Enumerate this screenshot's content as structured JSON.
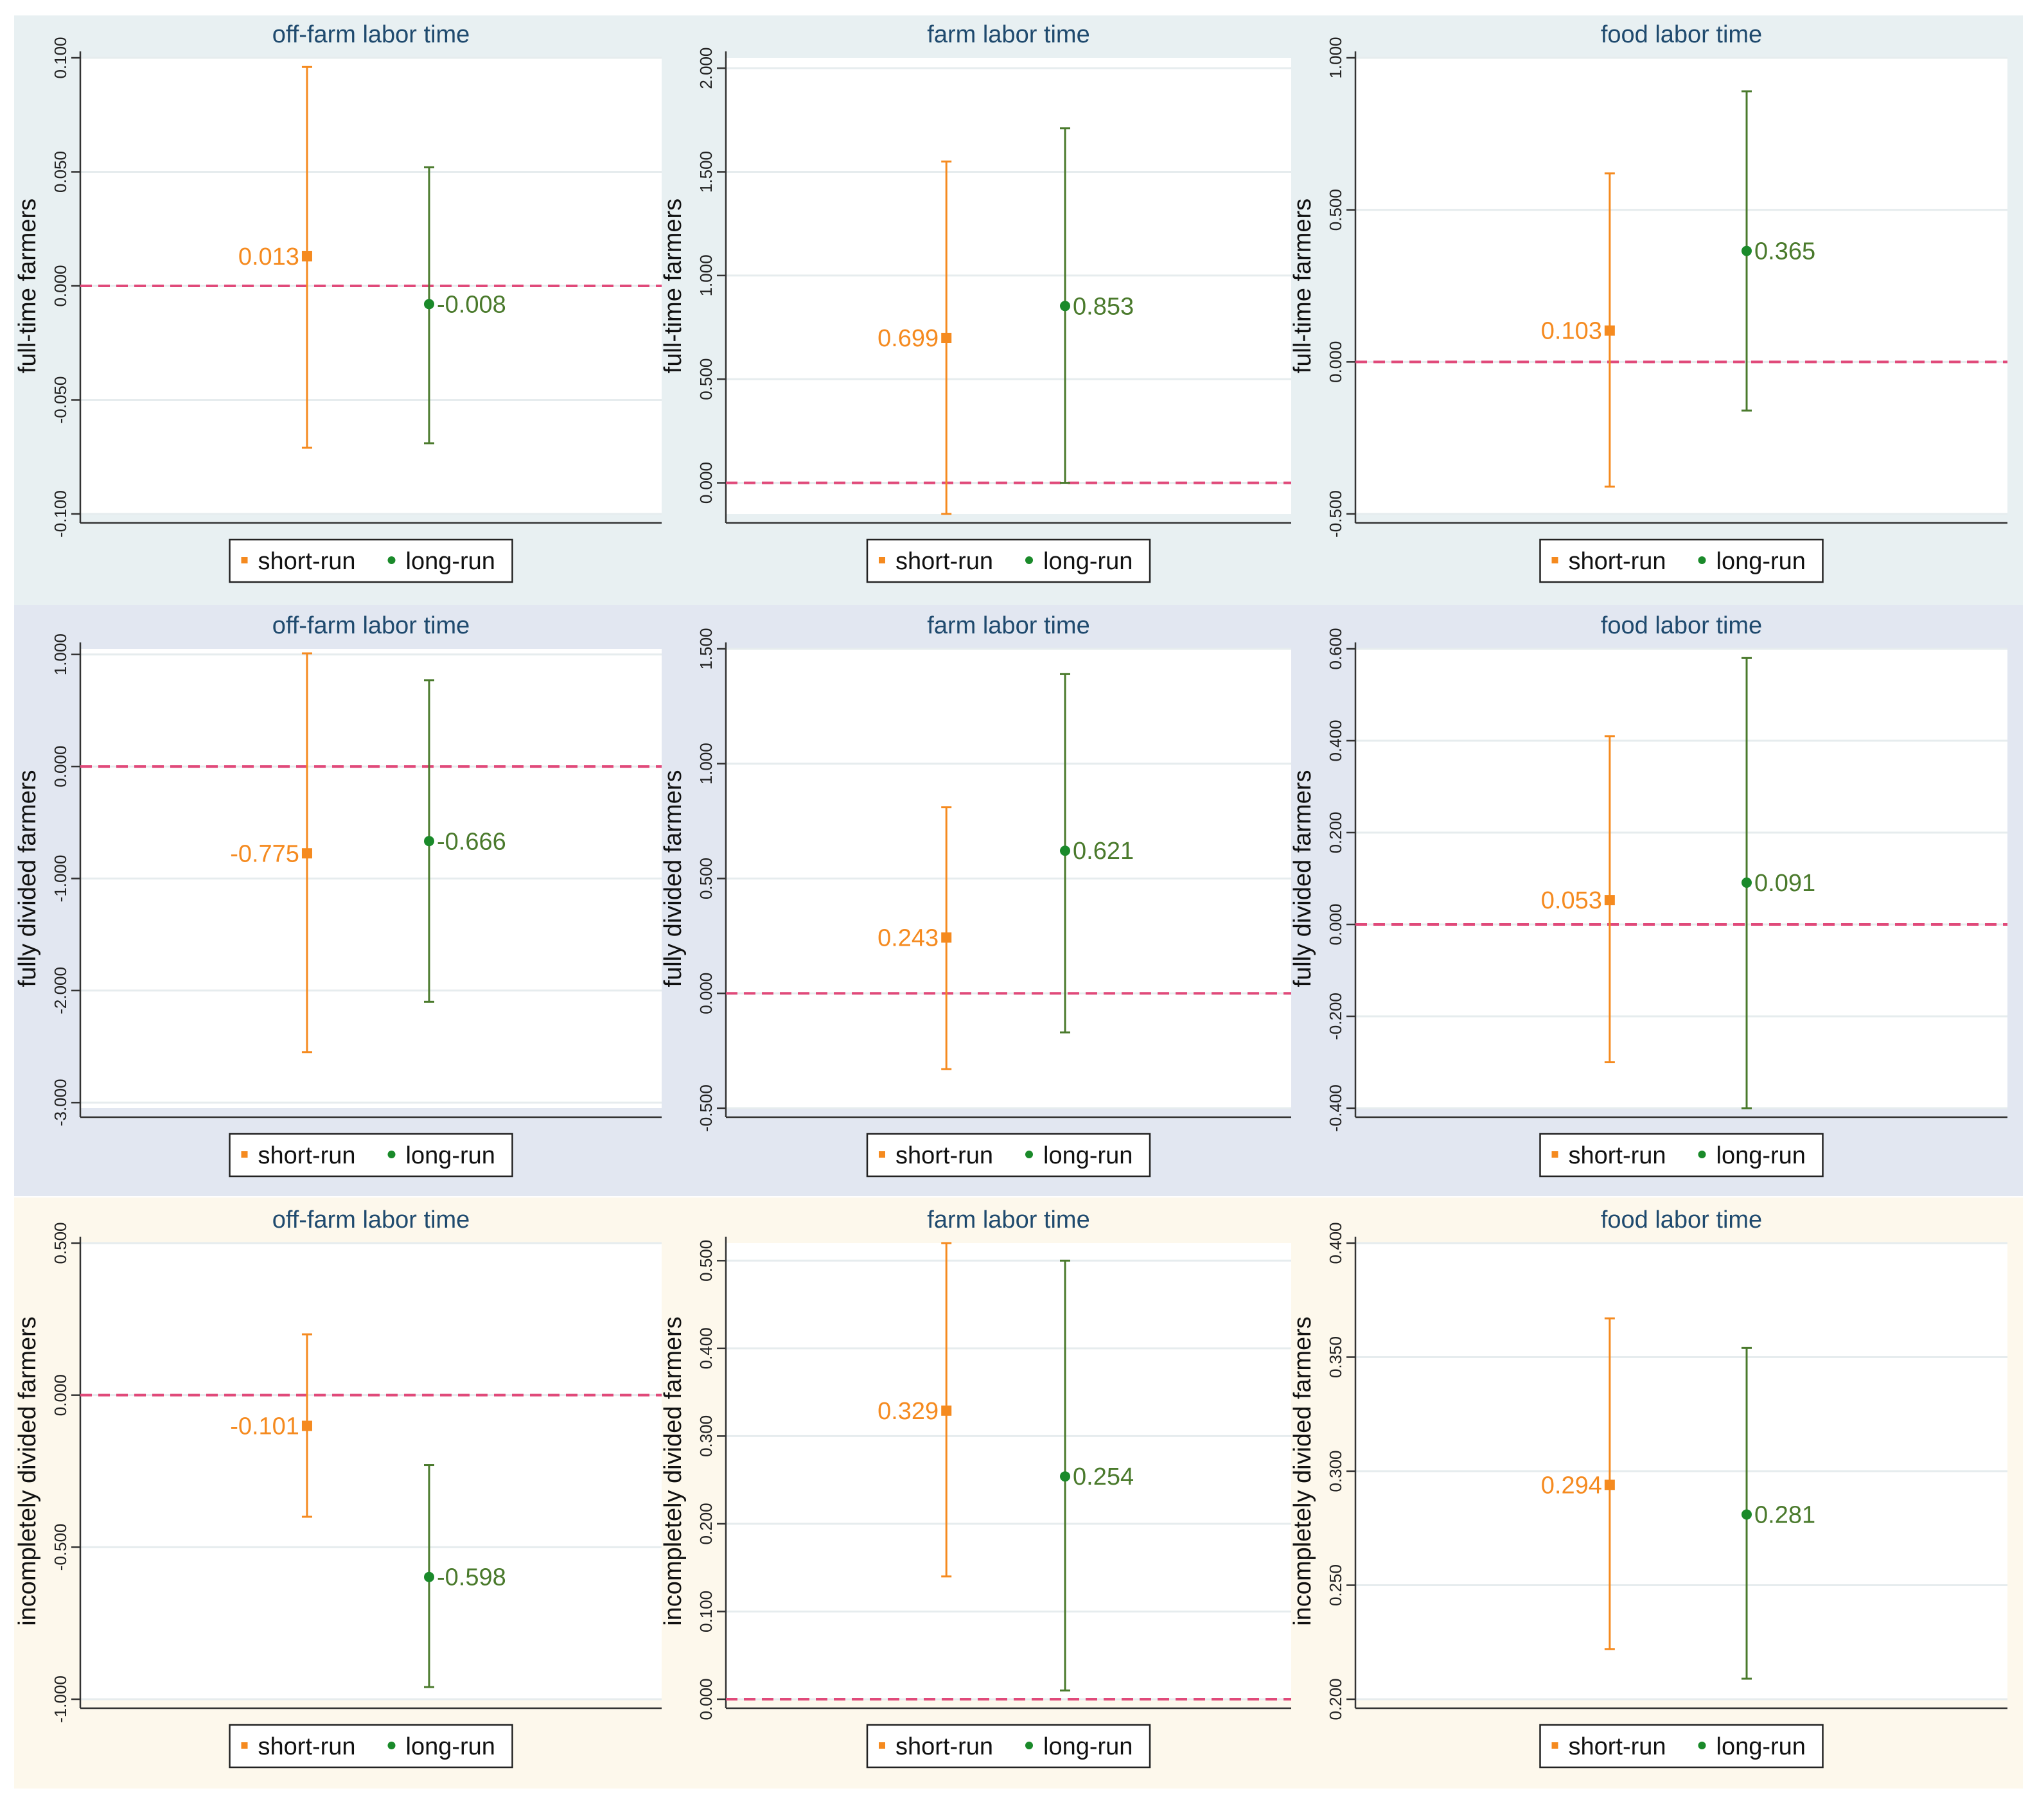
{
  "colors": {
    "short_run": "#f58a1f",
    "long_run": "#4a7a2c",
    "long_run_legend": "#1a8a2a",
    "zero_line": "#e04a7a",
    "row_bgs": [
      "#e8f0f2",
      "#e2e7f1",
      "#fdf8ec"
    ]
  },
  "legend": {
    "short_run_label": "short-run",
    "long_run_label": "long-run"
  },
  "chart_data": [
    {
      "type": "errorbar",
      "title": "off-farm labor time",
      "ylabel": "full-time farmers",
      "ylim": [
        -0.1,
        0.1
      ],
      "yticks": [
        -0.1,
        -0.05,
        0,
        0.05,
        0.1
      ],
      "ytick_labels": [
        "-0.100",
        "-0.050",
        "0.000",
        "0.050",
        "0.100"
      ],
      "series": [
        {
          "name": "short-run",
          "estimate": 0.013,
          "label": "0.013",
          "ci": [
            -0.071,
            0.096
          ]
        },
        {
          "name": "long-run",
          "estimate": -0.008,
          "label": "-0.008",
          "ci": [
            -0.069,
            0.052
          ]
        }
      ]
    },
    {
      "type": "errorbar",
      "title": "farm labor time",
      "ylabel": "full-time farmers",
      "ylim": [
        -0.15,
        2.05
      ],
      "yticks": [
        0,
        0.5,
        1,
        1.5,
        2
      ],
      "ytick_labels": [
        "0.000",
        "0.500",
        "1.000",
        "1.500",
        "2.000"
      ],
      "series": [
        {
          "name": "short-run",
          "estimate": 0.699,
          "label": "0.699",
          "ci": [
            -0.15,
            1.55
          ]
        },
        {
          "name": "long-run",
          "estimate": 0.853,
          "label": "0.853",
          "ci": [
            0.0,
            1.71
          ]
        }
      ]
    },
    {
      "type": "errorbar",
      "title": "food labor time",
      "ylabel": "full-time farmers",
      "ylim": [
        -0.5,
        1.0
      ],
      "yticks": [
        -0.5,
        0,
        0.5,
        1
      ],
      "ytick_labels": [
        "-0.500",
        "0.000",
        "0.500",
        "1.000"
      ],
      "series": [
        {
          "name": "short-run",
          "estimate": 0.103,
          "label": "0.103",
          "ci": [
            -0.41,
            0.62
          ]
        },
        {
          "name": "long-run",
          "estimate": 0.365,
          "label": "0.365",
          "ci": [
            -0.16,
            0.89
          ]
        }
      ]
    },
    {
      "type": "errorbar",
      "title": "off-farm labor time",
      "ylabel": "fully divided farmers",
      "ylim": [
        -3.05,
        1.05
      ],
      "yticks": [
        -3,
        -2,
        -1,
        0,
        1
      ],
      "ytick_labels": [
        "-3.000",
        "-2.000",
        "-1.000",
        "0.000",
        "1.000"
      ],
      "series": [
        {
          "name": "short-run",
          "estimate": -0.775,
          "label": "-0.775",
          "ci": [
            -2.55,
            1.01
          ]
        },
        {
          "name": "long-run",
          "estimate": -0.666,
          "label": "-0.666",
          "ci": [
            -2.1,
            0.77
          ]
        }
      ]
    },
    {
      "type": "errorbar",
      "title": "farm labor time",
      "ylabel": "fully divided farmers",
      "ylim": [
        -0.5,
        1.5
      ],
      "yticks": [
        -0.5,
        0,
        0.5,
        1,
        1.5
      ],
      "ytick_labels": [
        "-0.500",
        "0.000",
        "0.500",
        "1.000",
        "1.500"
      ],
      "series": [
        {
          "name": "short-run",
          "estimate": 0.243,
          "label": "0.243",
          "ci": [
            -0.33,
            0.81
          ]
        },
        {
          "name": "long-run",
          "estimate": 0.621,
          "label": "0.621",
          "ci": [
            -0.17,
            1.39
          ]
        }
      ]
    },
    {
      "type": "errorbar",
      "title": "food labor time",
      "ylabel": "fully divided farmers",
      "ylim": [
        -0.4,
        0.6
      ],
      "yticks": [
        -0.4,
        -0.2,
        0,
        0.2,
        0.4,
        0.6
      ],
      "ytick_labels": [
        "-0.400",
        "-0.200",
        "0.000",
        "0.200",
        "0.400",
        "0.600"
      ],
      "series": [
        {
          "name": "short-run",
          "estimate": 0.053,
          "label": "0.053",
          "ci": [
            -0.3,
            0.41
          ]
        },
        {
          "name": "long-run",
          "estimate": 0.091,
          "label": "0.091",
          "ci": [
            -0.4,
            0.58
          ]
        }
      ]
    },
    {
      "type": "errorbar",
      "title": "off-farm labor time",
      "ylabel": "incompletely divided farmers",
      "ylim": [
        -1.0,
        0.5
      ],
      "yticks": [
        -1,
        -0.5,
        0,
        0.5
      ],
      "ytick_labels": [
        "-1.000",
        "-0.500",
        "0.000",
        "0.500"
      ],
      "series": [
        {
          "name": "short-run",
          "estimate": -0.101,
          "label": "-0.101",
          "ci": [
            -0.4,
            0.2
          ]
        },
        {
          "name": "long-run",
          "estimate": -0.598,
          "label": "-0.598",
          "ci": [
            -0.96,
            -0.23
          ]
        }
      ]
    },
    {
      "type": "errorbar",
      "title": "farm labor time",
      "ylabel": "incompletely divided farmers",
      "ylim": [
        0,
        0.52
      ],
      "yticks": [
        0,
        0.1,
        0.2,
        0.3,
        0.4,
        0.5
      ],
      "ytick_labels": [
        "0.000",
        "0.100",
        "0.200",
        "0.300",
        "0.400",
        "0.500"
      ],
      "series": [
        {
          "name": "short-run",
          "estimate": 0.329,
          "label": "0.329",
          "ci": [
            0.14,
            0.52
          ]
        },
        {
          "name": "long-run",
          "estimate": 0.254,
          "label": "0.254",
          "ci": [
            0.01,
            0.5
          ]
        }
      ]
    },
    {
      "type": "errorbar",
      "title": "food labor time",
      "ylabel": "incompletely divided farmers",
      "ylim": [
        0.2,
        0.4
      ],
      "yticks": [
        0.2,
        0.25,
        0.3,
        0.35,
        0.4
      ],
      "ytick_labels": [
        "0.200",
        "0.250",
        "0.300",
        "0.350",
        "0.400"
      ],
      "series": [
        {
          "name": "short-run",
          "estimate": 0.294,
          "label": "0.294",
          "ci": [
            0.222,
            0.367
          ]
        },
        {
          "name": "long-run",
          "estimate": 0.281,
          "label": "0.281",
          "ci": [
            0.209,
            0.354
          ]
        }
      ]
    }
  ]
}
